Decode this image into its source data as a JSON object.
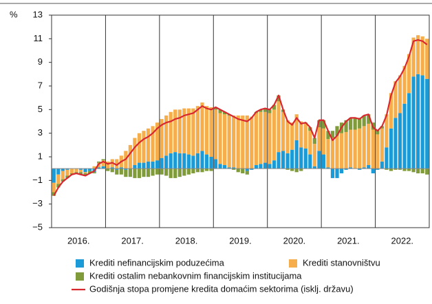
{
  "chart_data": {
    "type": "bar",
    "stacked": true,
    "y_label": "%",
    "groups": [
      "2016.",
      "2017.",
      "2018.",
      "2019.",
      "2020.",
      "2021.",
      "2022."
    ],
    "categories": [
      null,
      null,
      null,
      null,
      null,
      null,
      null,
      null,
      null,
      null,
      null,
      null,
      null,
      null,
      null,
      null,
      null,
      null,
      null,
      null,
      null,
      null,
      null,
      null,
      null,
      null,
      null,
      null,
      null,
      null,
      null,
      null,
      null,
      null,
      null,
      null,
      null,
      null,
      null,
      null,
      null,
      null,
      null,
      null,
      null,
      null,
      null,
      null,
      null,
      null,
      null,
      null,
      null,
      null,
      null,
      null,
      null,
      null,
      null,
      null,
      null,
      null,
      null,
      null,
      null,
      null,
      null,
      null,
      null,
      null,
      null,
      null,
      null,
      null,
      null,
      null,
      null,
      null,
      null,
      null,
      null,
      null,
      null,
      null
    ],
    "ylim": [
      -5,
      13
    ],
    "yticks": [
      {
        "value": -5,
        "label": "−5"
      },
      {
        "value": -3,
        "label": "−3"
      },
      {
        "value": -1,
        "label": "−1"
      },
      1,
      3,
      5,
      7,
      9,
      11,
      13
    ],
    "series": [
      {
        "name": "Krediti nefinancijskim poduzećima",
        "color": "#1a9ad6",
        "values": [
          -1.2,
          -0.5,
          -0.2,
          -0.1,
          0,
          0,
          -0.1,
          -0.3,
          -0.2,
          -0.3,
          0.1,
          0.2,
          0.0,
          0.1,
          -0.1,
          0.1,
          -0.1,
          0.0,
          0.3,
          0.5,
          0.5,
          0.6,
          0.6,
          0.7,
          0.9,
          1.1,
          1.3,
          1.4,
          1.3,
          1.3,
          1.2,
          1.1,
          1.3,
          1.5,
          1.2,
          1.0,
          0.8,
          0.4,
          0.3,
          0.1,
          0.1,
          0.0,
          0.0,
          -0.2,
          -0.1,
          0.3,
          0.4,
          0.5,
          0.4,
          0.7,
          1.4,
          1.5,
          1.3,
          1.6,
          2.4,
          1.8,
          1.7,
          1.2,
          0.2,
          1.5,
          1.2,
          0.1,
          -0.8,
          -0.8,
          -0.4,
          -0.1,
          0.1,
          0.0,
          -0.1,
          0.1,
          0.3,
          -0.4,
          -0.1,
          0.6,
          1.8,
          3.4,
          4.3,
          4.7,
          5.5,
          6.4,
          7.8,
          8.0,
          7.9,
          7.6
        ]
      },
      {
        "name": "Krediti stanovništvu",
        "color": "#f5ae4b",
        "values": [
          -0.8,
          -0.8,
          -0.7,
          -0.5,
          -0.4,
          -0.3,
          -0.2,
          -0.1,
          0,
          0.2,
          0.4,
          0.5,
          0.6,
          0.7,
          0.8,
          1.0,
          1.5,
          2.0,
          2.3,
          2.5,
          2.7,
          2.8,
          3.0,
          3.2,
          3.3,
          3.4,
          3.5,
          3.6,
          3.7,
          3.8,
          3.9,
          4.0,
          4.0,
          4.1,
          4.1,
          4.2,
          4.2,
          4.3,
          4.3,
          4.4,
          4.4,
          4.5,
          4.5,
          4.5,
          4.4,
          4.4,
          4.4,
          4.3,
          4.3,
          4.3,
          4.3,
          3.3,
          2.8,
          2.3,
          2.2,
          2.2,
          2.1,
          2.0,
          1.9,
          2.0,
          2.2,
          2.4,
          2.6,
          2.8,
          3.0,
          3.1,
          3.2,
          3.3,
          3.4,
          3.5,
          3.5,
          3.3,
          2.9,
          2.8,
          2.8,
          3.0,
          3.1,
          3.2,
          3.2,
          3.3,
          3.3,
          3.3,
          3.3,
          3.4
        ]
      },
      {
        "name": "Krediti ostalim nebankovnim financijskim institucijama",
        "color": "#7f9b3a",
        "values": [
          -0.3,
          -0.3,
          -0.2,
          -0.2,
          -0.1,
          -0.1,
          -0.2,
          -0.2,
          -0.2,
          -0.1,
          0.1,
          0.1,
          -0.2,
          -0.3,
          -0.4,
          -0.5,
          -0.6,
          -0.7,
          -0.8,
          -0.8,
          -0.7,
          -0.7,
          -0.6,
          -0.5,
          -0.5,
          -0.6,
          -0.8,
          -0.8,
          -0.7,
          -0.6,
          -0.5,
          -0.4,
          -0.3,
          -0.3,
          -0.2,
          -0.2,
          0.2,
          0.3,
          0.2,
          0.1,
          -0.1,
          -0.3,
          -0.4,
          -0.3,
          0.0,
          0.1,
          0.2,
          0.3,
          0.3,
          0.4,
          0.5,
          0.2,
          -0.1,
          -0.2,
          -0.3,
          -0.2,
          0.1,
          0.3,
          0.5,
          0.6,
          0.7,
          0.7,
          0.6,
          0.8,
          0.9,
          1.0,
          1.0,
          1.0,
          0.9,
          0.9,
          0.8,
          0.6,
          0.4,
          0.2,
          -0.1,
          -0.2,
          -0.1,
          -0.1,
          -0.2,
          -0.2,
          -0.3,
          -0.4,
          -0.4,
          -0.5
        ]
      }
    ],
    "line": {
      "name": "Godišnja stopa promjene kredita domaćim sektorima (isklj. državu)",
      "color": "#d7282f",
      "values": [
        -2.3,
        -1.6,
        -1.1,
        -0.8,
        -0.5,
        -0.4,
        -0.5,
        -0.6,
        -0.4,
        -0.2,
        0.4,
        0.6,
        0.4,
        0.5,
        0.3,
        0.6,
        0.8,
        1.3,
        1.8,
        2.2,
        2.5,
        2.7,
        3.0,
        3.4,
        3.7,
        3.9,
        4.0,
        4.2,
        4.3,
        4.5,
        4.6,
        4.7,
        5.0,
        5.3,
        5.1,
        5.0,
        5.2,
        5.0,
        4.8,
        4.6,
        4.4,
        4.2,
        4.1,
        4.0,
        4.3,
        4.8,
        5.0,
        5.1,
        5.0,
        5.4,
        6.2,
        5.0,
        4.0,
        3.7,
        4.3,
        3.8,
        3.9,
        3.5,
        2.6,
        4.1,
        4.1,
        3.2,
        2.4,
        2.8,
        3.5,
        4.0,
        4.3,
        4.3,
        4.2,
        4.5,
        4.6,
        3.5,
        3.2,
        3.6,
        4.5,
        6.2,
        7.3,
        7.8,
        8.5,
        9.5,
        10.8,
        10.9,
        10.8,
        10.5
      ]
    }
  }
}
